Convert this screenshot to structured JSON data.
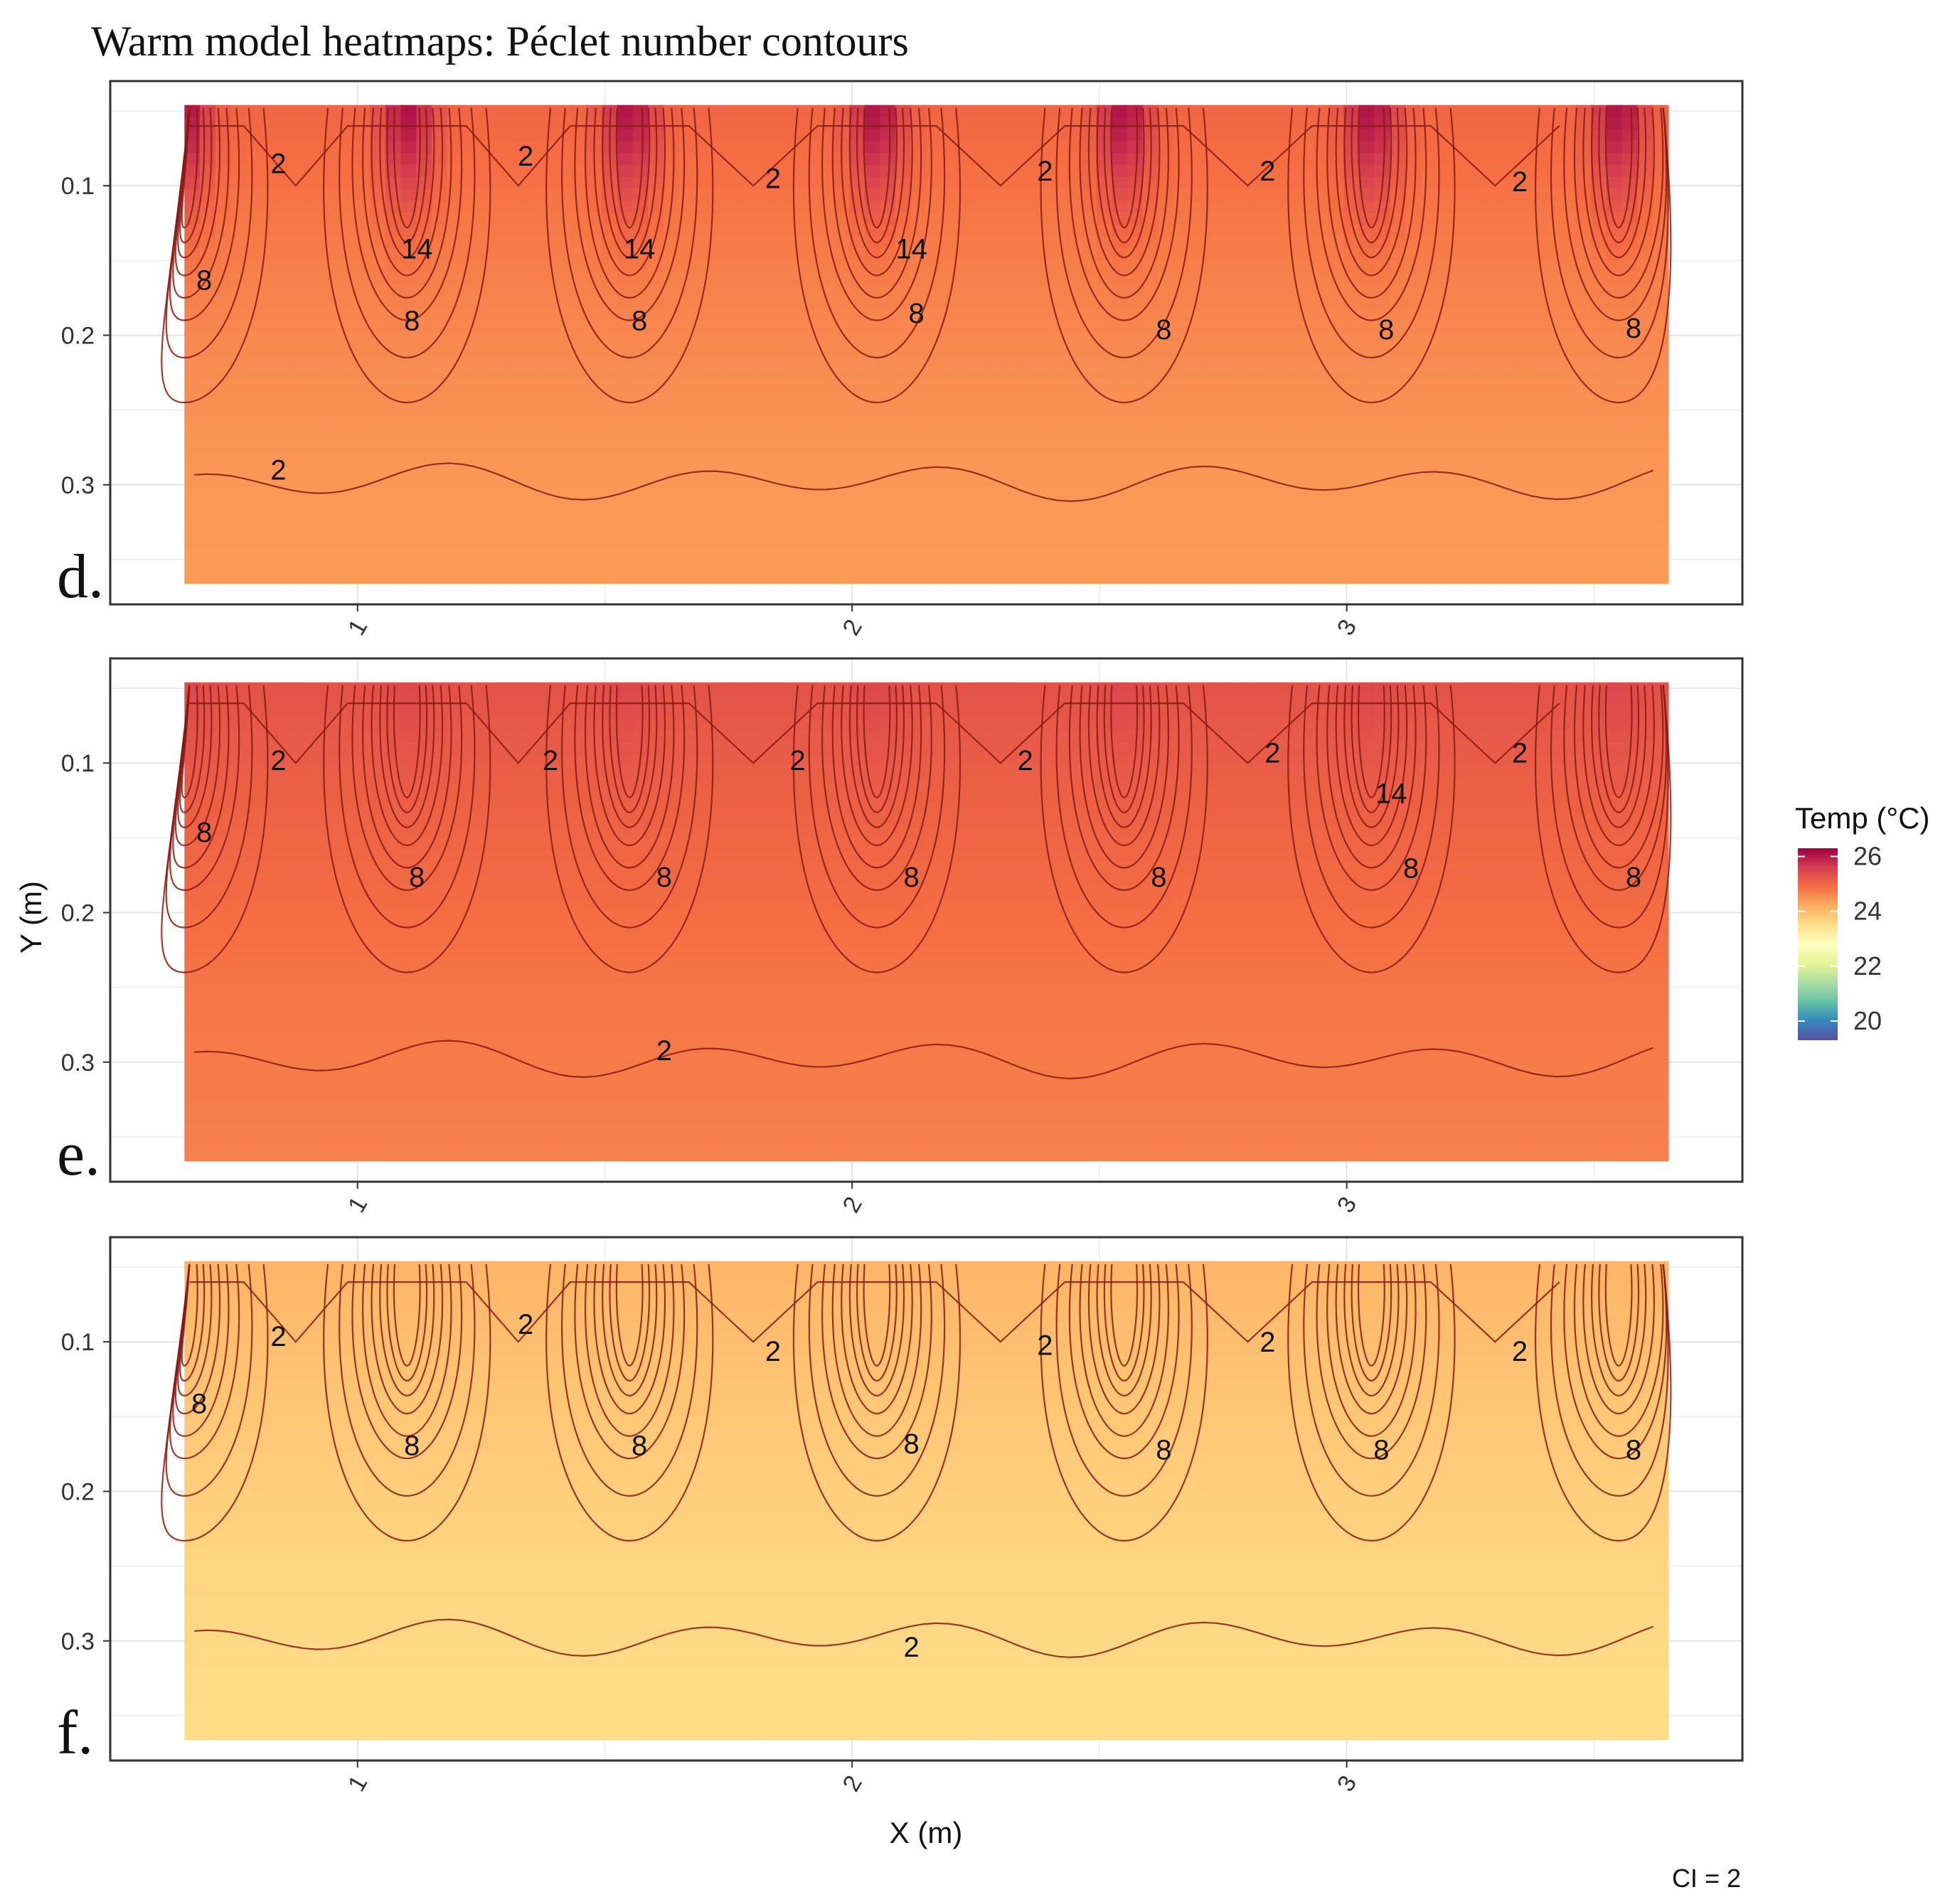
{
  "title": "Warm model heatmaps: Péclet number contours",
  "caption": "CI = 2",
  "chart_data": {
    "type": "heatmap",
    "title": "Warm model heatmaps: Péclet number contours",
    "xlabel": "X (m)",
    "ylabel": "Y (m)",
    "xlim": [
      0.5,
      3.8
    ],
    "ylim": [
      0.38,
      0.03
    ],
    "x_ticks": [
      "1",
      "2",
      "3"
    ],
    "y_ticks": [
      "0.1",
      "0.2",
      "0.3"
    ],
    "x_tick_values": [
      1,
      2,
      3
    ],
    "y_tick_values": [
      0.1,
      0.2,
      0.3
    ],
    "contour_interval": "CI = 2",
    "contour_levels": [
      2,
      4,
      6,
      8,
      10,
      12,
      14
    ],
    "legend": {
      "title": "Temp (°C)",
      "labels": [
        "26",
        "24",
        "22",
        "20"
      ],
      "values": [
        26,
        24,
        22,
        20
      ],
      "range": [
        19.3,
        26.3
      ],
      "colors": [
        "#5e4fa2",
        "#3288bd",
        "#66c2a5",
        "#abdda4",
        "#e6f598",
        "#ffffbf",
        "#fee08b",
        "#fdae61",
        "#f46d43",
        "#d53e4f",
        "#9e0142"
      ]
    },
    "panels": [
      {
        "label": "d.",
        "temp_scale": "strong vertical gradient, hottest at column tops",
        "temp_base": 24.4,
        "temp_top": 25.0,
        "temp_hot": 26.1,
        "contour_labels": [
          {
            "text": "2",
            "x": 0.84,
            "y": 0.085
          },
          {
            "text": "2",
            "x": 1.34,
            "y": 0.08
          },
          {
            "text": "2",
            "x": 1.84,
            "y": 0.095
          },
          {
            "text": "2",
            "x": 2.39,
            "y": 0.09
          },
          {
            "text": "2",
            "x": 2.84,
            "y": 0.09
          },
          {
            "text": "2",
            "x": 3.35,
            "y": 0.097
          },
          {
            "text": "14",
            "x": 1.12,
            "y": 0.142
          },
          {
            "text": "14",
            "x": 1.57,
            "y": 0.142
          },
          {
            "text": "14",
            "x": 2.12,
            "y": 0.142
          },
          {
            "text": "8",
            "x": 0.69,
            "y": 0.163
          },
          {
            "text": "8",
            "x": 1.11,
            "y": 0.19
          },
          {
            "text": "8",
            "x": 1.57,
            "y": 0.19
          },
          {
            "text": "8",
            "x": 2.13,
            "y": 0.185
          },
          {
            "text": "8",
            "x": 2.63,
            "y": 0.196
          },
          {
            "text": "8",
            "x": 3.08,
            "y": 0.196
          },
          {
            "text": "8",
            "x": 3.58,
            "y": 0.195
          },
          {
            "text": "2",
            "x": 0.84,
            "y": 0.29
          }
        ]
      },
      {
        "label": "e.",
        "temp_scale": "uniformly warm, slight gradient",
        "temp_base": 24.7,
        "temp_top": 25.3,
        "temp_hot": 25.45,
        "contour_labels": [
          {
            "text": "2",
            "x": 0.84,
            "y": 0.098
          },
          {
            "text": "2",
            "x": 1.39,
            "y": 0.098
          },
          {
            "text": "2",
            "x": 1.89,
            "y": 0.098
          },
          {
            "text": "2",
            "x": 2.35,
            "y": 0.098
          },
          {
            "text": "2",
            "x": 2.85,
            "y": 0.093
          },
          {
            "text": "2",
            "x": 3.35,
            "y": 0.093
          },
          {
            "text": "14",
            "x": 3.09,
            "y": 0.12
          },
          {
            "text": "8",
            "x": 0.69,
            "y": 0.146
          },
          {
            "text": "8",
            "x": 1.12,
            "y": 0.176
          },
          {
            "text": "8",
            "x": 1.62,
            "y": 0.176
          },
          {
            "text": "8",
            "x": 2.12,
            "y": 0.176
          },
          {
            "text": "8",
            "x": 2.62,
            "y": 0.176
          },
          {
            "text": "8",
            "x": 3.13,
            "y": 0.17
          },
          {
            "text": "8",
            "x": 3.58,
            "y": 0.176
          },
          {
            "text": "2",
            "x": 1.62,
            "y": 0.292
          }
        ]
      },
      {
        "label": "f.",
        "temp_scale": "cool, pale yellow",
        "temp_base": 23.55,
        "temp_top": 24.1,
        "temp_hot": 24.1,
        "contour_labels": [
          {
            "text": "2",
            "x": 0.84,
            "y": 0.096
          },
          {
            "text": "2",
            "x": 1.34,
            "y": 0.088
          },
          {
            "text": "2",
            "x": 1.84,
            "y": 0.106
          },
          {
            "text": "2",
            "x": 2.39,
            "y": 0.102
          },
          {
            "text": "2",
            "x": 2.84,
            "y": 0.1
          },
          {
            "text": "2",
            "x": 3.35,
            "y": 0.106
          },
          {
            "text": "8",
            "x": 0.68,
            "y": 0.141
          },
          {
            "text": "8",
            "x": 1.11,
            "y": 0.169
          },
          {
            "text": "8",
            "x": 1.57,
            "y": 0.169
          },
          {
            "text": "8",
            "x": 2.12,
            "y": 0.168
          },
          {
            "text": "8",
            "x": 2.63,
            "y": 0.172
          },
          {
            "text": "8",
            "x": 3.07,
            "y": 0.172
          },
          {
            "text": "8",
            "x": 3.58,
            "y": 0.172
          },
          {
            "text": "2",
            "x": 2.12,
            "y": 0.304
          }
        ]
      }
    ],
    "sources": [
      0.65,
      1.1,
      1.55,
      2.05,
      2.55,
      3.05,
      3.55
    ],
    "source_depth": 0.07
  }
}
